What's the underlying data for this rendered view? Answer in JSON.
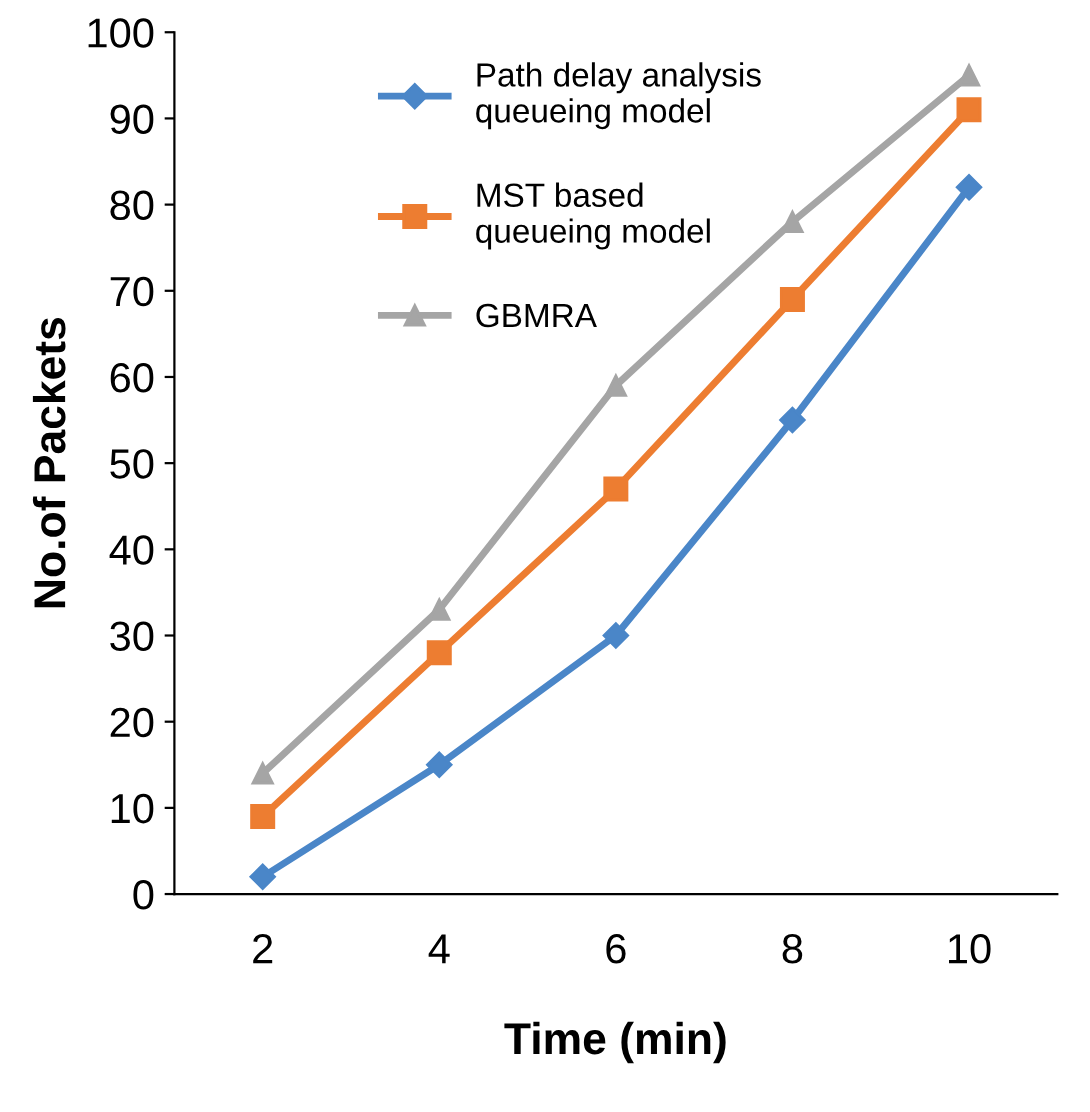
{
  "chart_data": {
    "type": "line",
    "xlabel": "Time (min)",
    "ylabel": "No.of Packets",
    "categories": [
      "2",
      "4",
      "6",
      "8",
      "10"
    ],
    "series": [
      {
        "name": "Path delay analysis\nqueueing model",
        "color": "#4a86c8",
        "marker": "diamond",
        "values": [
          2,
          15,
          30,
          55,
          82
        ]
      },
      {
        "name": "MST based\nqueueing model",
        "color": "#ed7d31",
        "marker": "square",
        "values": [
          9,
          28,
          47,
          69,
          91
        ]
      },
      {
        "name": "GBMRA",
        "color": "#a5a5a5",
        "marker": "triangle",
        "values": [
          14,
          33,
          59,
          78,
          95
        ]
      }
    ],
    "ylim": [
      0,
      100
    ],
    "yticks": [
      0,
      10,
      20,
      30,
      40,
      50,
      60,
      70,
      80,
      90,
      100
    ],
    "grid": false,
    "legend": "top",
    "line_style": "solid"
  }
}
